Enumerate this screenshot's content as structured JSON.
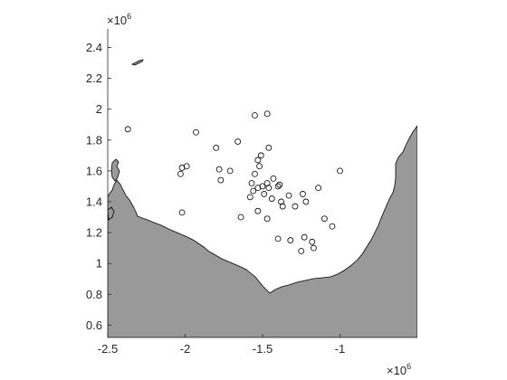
{
  "chart_data": {
    "type": "scatter",
    "title": "",
    "xlabel": "",
    "ylabel": "",
    "x_multiplier_label": {
      "base": "×10",
      "exp": "6"
    },
    "y_multiplier_label": {
      "base": "×10",
      "exp": "6"
    },
    "xlim": [
      -2.5,
      -0.5
    ],
    "ylim": [
      0.52,
      2.52
    ],
    "x_ticks": [
      -2.5,
      -2,
      -1.5,
      -1
    ],
    "x_tick_labels": [
      "-2.5",
      "-2",
      "-1.5",
      "-1"
    ],
    "y_ticks": [
      0.6,
      0.8,
      1.0,
      1.2,
      1.4,
      1.6,
      1.8,
      2.0,
      2.2,
      2.4
    ],
    "y_tick_labels": [
      "0.6",
      "0.8",
      "1",
      "1.2",
      "1.4",
      "1.6",
      "1.8",
      "2",
      "2.2",
      "2.4"
    ],
    "grid": false,
    "land_color": "#999999",
    "marker": "open-circle",
    "marker_color": "#000000",
    "points": [
      {
        "x": -2.37,
        "y": 1.87
      },
      {
        "x": -1.93,
        "y": 1.85
      },
      {
        "x": -2.03,
        "y": 1.58
      },
      {
        "x": -2.02,
        "y": 1.62
      },
      {
        "x": -1.99,
        "y": 1.63
      },
      {
        "x": -2.02,
        "y": 1.33
      },
      {
        "x": -1.8,
        "y": 1.75
      },
      {
        "x": -1.78,
        "y": 1.61
      },
      {
        "x": -1.77,
        "y": 1.54
      },
      {
        "x": -1.71,
        "y": 1.6
      },
      {
        "x": -1.66,
        "y": 1.79
      },
      {
        "x": -1.55,
        "y": 1.96
      },
      {
        "x": -1.47,
        "y": 1.97
      },
      {
        "x": -1.46,
        "y": 1.75
      },
      {
        "x": -1.53,
        "y": 1.67
      },
      {
        "x": -1.51,
        "y": 1.7
      },
      {
        "x": -1.52,
        "y": 1.63
      },
      {
        "x": -1.55,
        "y": 1.58
      },
      {
        "x": -1.57,
        "y": 1.52
      },
      {
        "x": -1.56,
        "y": 1.47
      },
      {
        "x": -1.53,
        "y": 1.49
      },
      {
        "x": -1.5,
        "y": 1.5
      },
      {
        "x": -1.47,
        "y": 1.52
      },
      {
        "x": -1.46,
        "y": 1.49
      },
      {
        "x": -1.43,
        "y": 1.55
      },
      {
        "x": -1.4,
        "y": 1.5
      },
      {
        "x": -1.39,
        "y": 1.51
      },
      {
        "x": -1.44,
        "y": 1.42
      },
      {
        "x": -1.49,
        "y": 1.45
      },
      {
        "x": -1.58,
        "y": 1.43
      },
      {
        "x": -1.37,
        "y": 1.37
      },
      {
        "x": -1.38,
        "y": 1.4
      },
      {
        "x": -1.33,
        "y": 1.44
      },
      {
        "x": -1.29,
        "y": 1.37
      },
      {
        "x": -1.24,
        "y": 1.45
      },
      {
        "x": -1.22,
        "y": 1.4
      },
      {
        "x": -1.14,
        "y": 1.49
      },
      {
        "x": -1.0,
        "y": 1.6
      },
      {
        "x": -1.53,
        "y": 1.34
      },
      {
        "x": -1.47,
        "y": 1.29
      },
      {
        "x": -1.64,
        "y": 1.3
      },
      {
        "x": -1.4,
        "y": 1.16
      },
      {
        "x": -1.32,
        "y": 1.15
      },
      {
        "x": -1.23,
        "y": 1.17
      },
      {
        "x": -1.18,
        "y": 1.14
      },
      {
        "x": -1.17,
        "y": 1.1
      },
      {
        "x": -1.25,
        "y": 1.08
      },
      {
        "x": -1.1,
        "y": 1.29
      },
      {
        "x": -1.05,
        "y": 1.24
      }
    ]
  }
}
